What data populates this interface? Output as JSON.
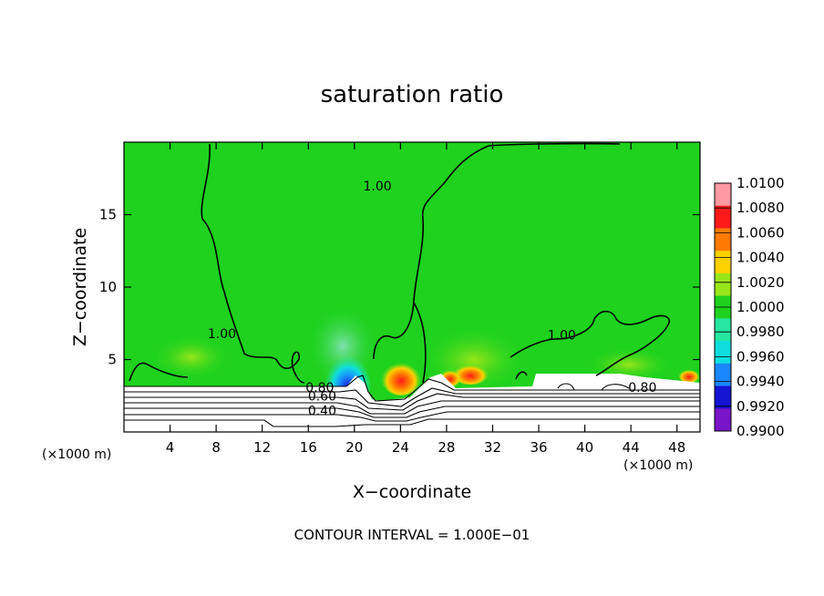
{
  "chart_data": {
    "type": "heatmap",
    "title": "saturation ratio",
    "xlabel": "X−coordinate",
    "ylabel": "Z−coordinate",
    "x_unit_left": "(×1000 m)",
    "x_unit_right": "(×1000 m)",
    "footer": "CONTOUR INTERVAL = 1.000E−01",
    "xlim": [
      0,
      50
    ],
    "ylim": [
      0,
      20
    ],
    "x_ticks": [
      4,
      8,
      12,
      16,
      20,
      24,
      28,
      32,
      36,
      40,
      44,
      48
    ],
    "y_ticks": [
      5,
      10,
      15
    ],
    "colorbar": {
      "labels": [
        "1.0100",
        "1.0080",
        "1.0060",
        "1.0040",
        "1.0020",
        "1.0000",
        "0.9980",
        "0.9960",
        "0.9940",
        "0.9920",
        "0.9900"
      ],
      "colors": [
        "#ff9aa2",
        "#ff1a1a",
        "#ff7a00",
        "#ffd000",
        "#99e61a",
        "#1ed21e",
        "#26e6a0",
        "#10dede",
        "#1a86ff",
        "#1414d2",
        "#7a14c8"
      ]
    },
    "contour_labels": [
      {
        "text": "1.00",
        "x": 22.0,
        "z": 16.8
      },
      {
        "text": "1.00",
        "x": 8.5,
        "z": 6.6
      },
      {
        "text": "1.00",
        "x": 38.0,
        "z": 6.5
      },
      {
        "text": "0.80",
        "x": 17.0,
        "z": 2.9
      },
      {
        "text": "0.60",
        "x": 17.2,
        "z": 2.3
      },
      {
        "text": "0.40",
        "x": 17.2,
        "z": 1.3
      },
      {
        "text": "0.80",
        "x": 45.0,
        "z": 2.9
      }
    ]
  }
}
